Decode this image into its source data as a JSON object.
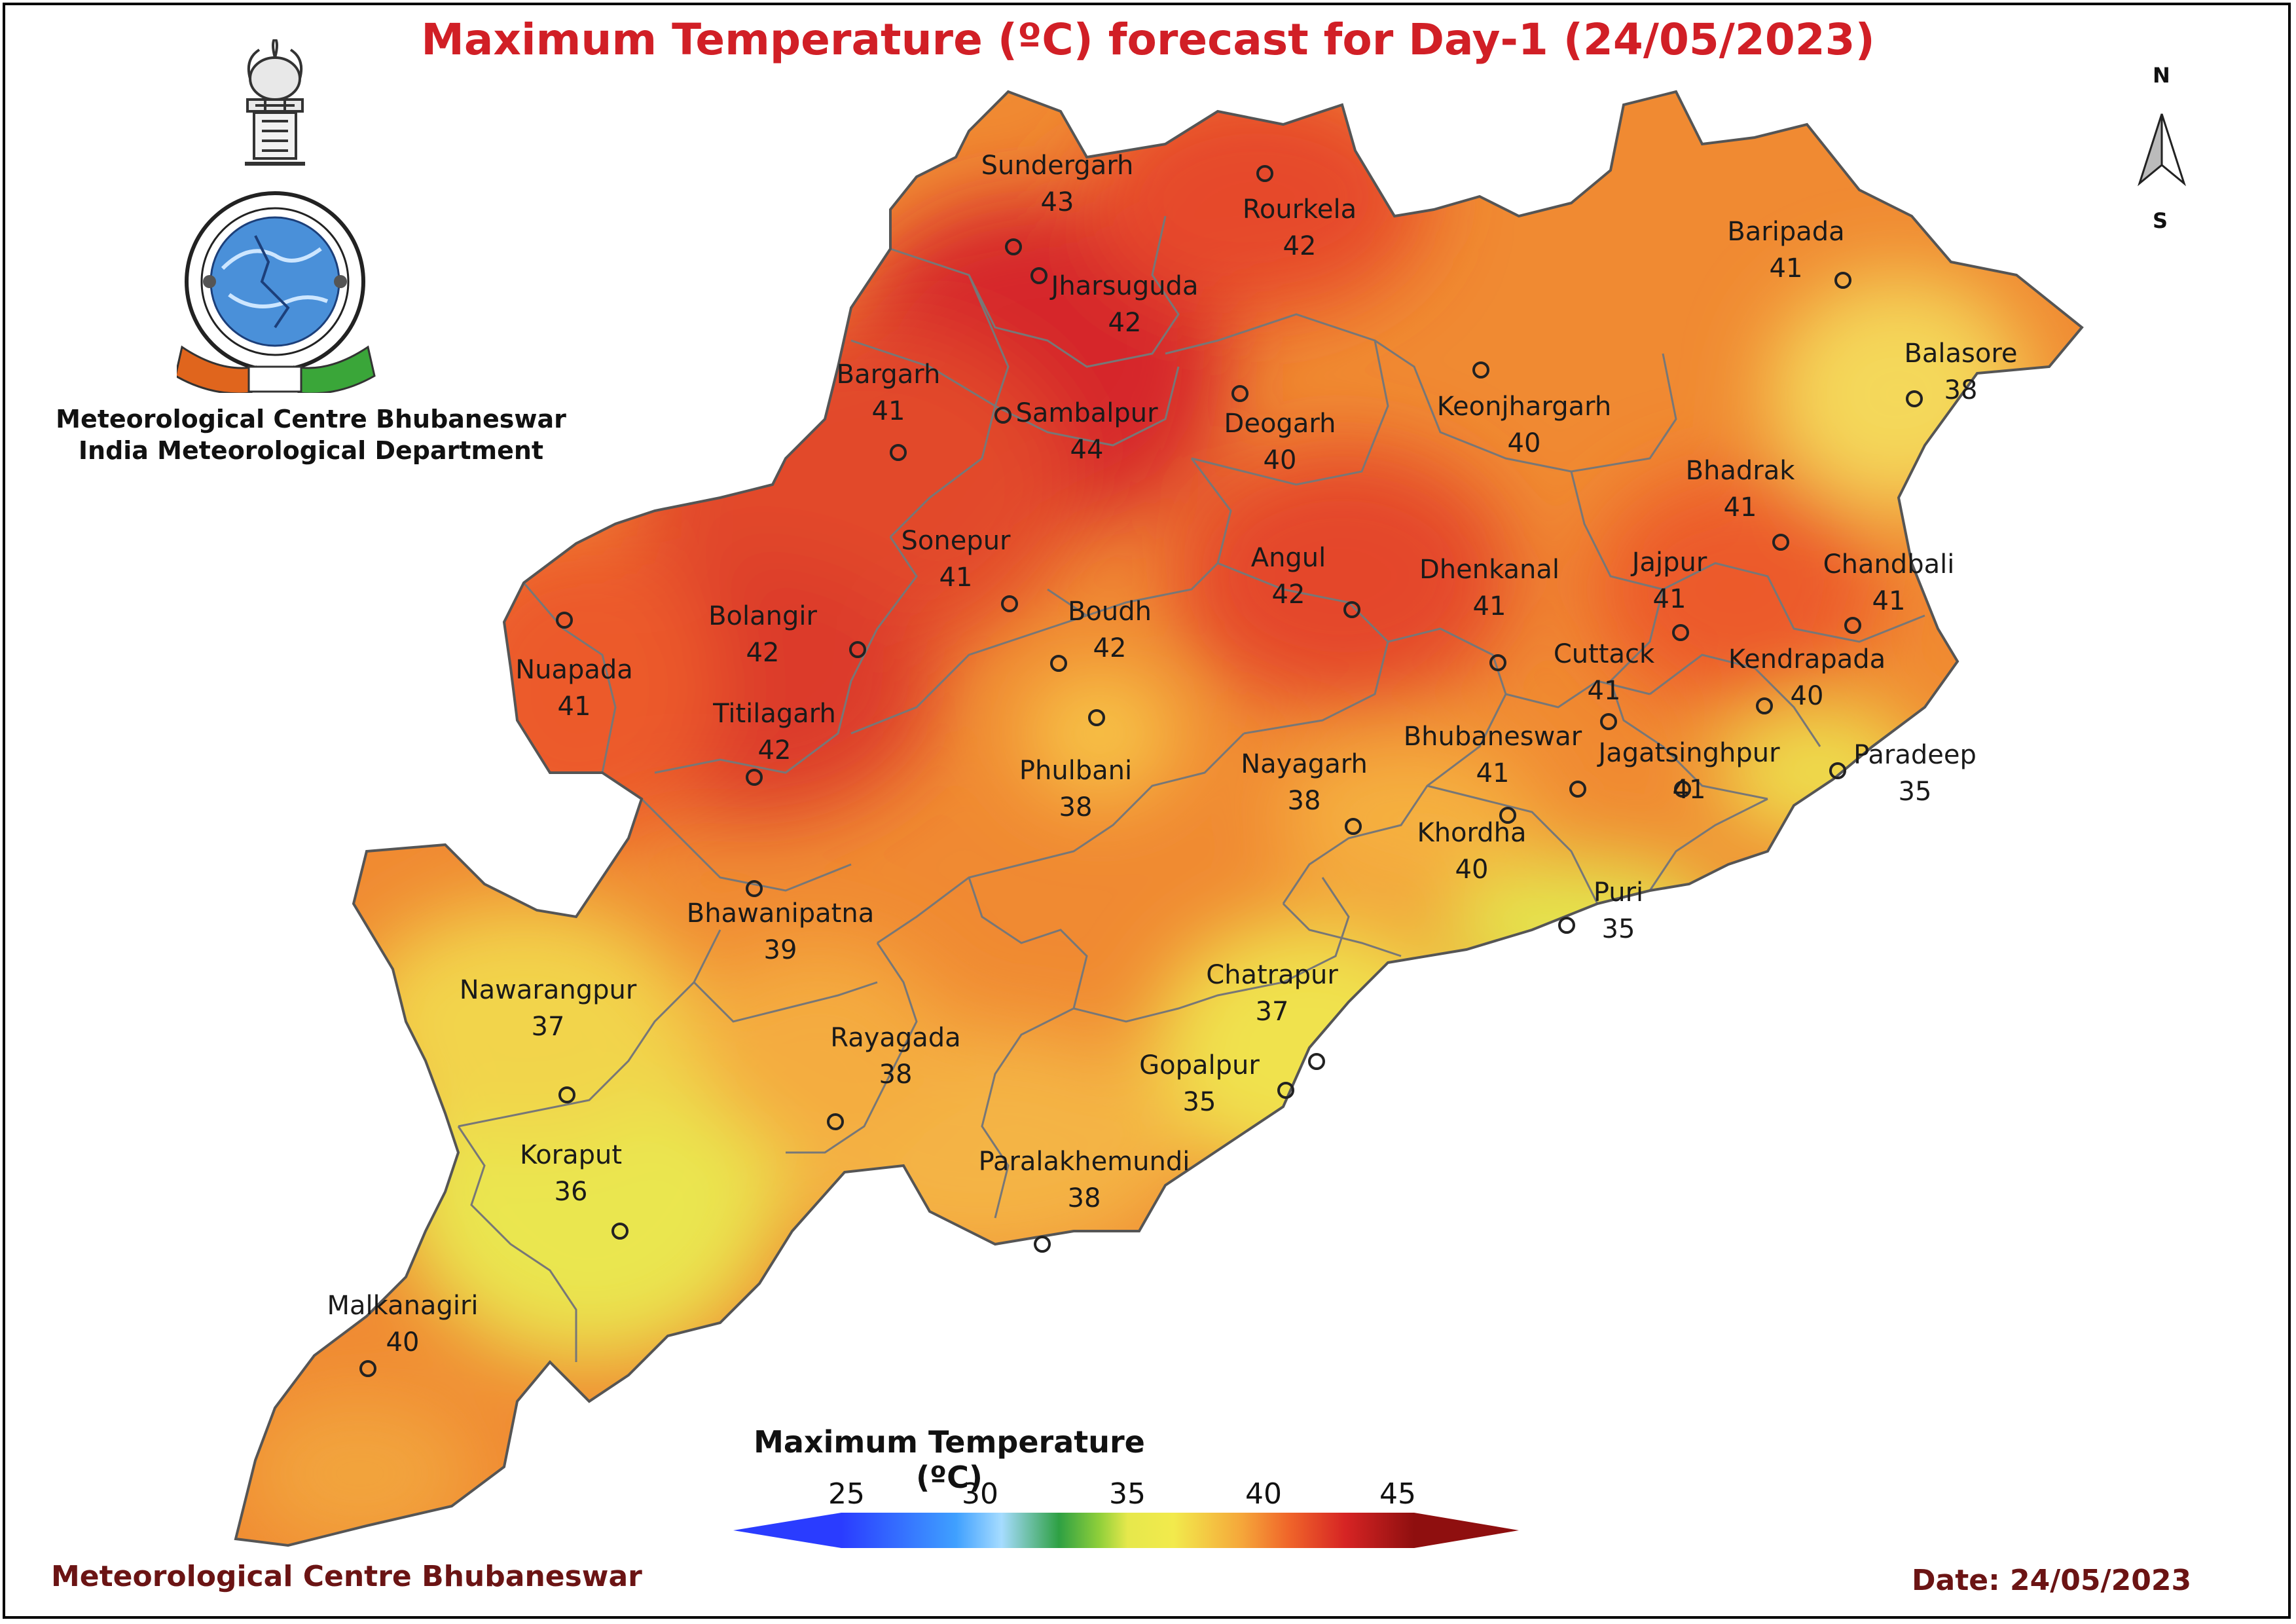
{
  "title": {
    "text": "Maximum Temperature (ºC) forecast for Day-1 (24/05/2023)",
    "color": "#d11f26"
  },
  "organization": {
    "line1": "Meteorological Centre Bhubaneswar",
    "line2": "India Meteorological Department",
    "logo_icon": "imd-emblem-logo"
  },
  "compass": {
    "north": "N",
    "south": "S",
    "icon": "north-arrow-icon"
  },
  "legend": {
    "title": "Maximum Temperature (ºC)",
    "ticks": [
      "25",
      "30",
      "35",
      "40",
      "45"
    ],
    "colors": [
      "#2a3cff",
      "#3fa0ff",
      "#a6dcff",
      "#2ea043",
      "#8fcf3a",
      "#f2ea4c",
      "#f5a63a",
      "#f0662a",
      "#d62424",
      "#8f0f0f"
    ]
  },
  "footer": {
    "left": "Meteorological Centre Bhubaneswar",
    "right": "Date: 24/05/2023"
  },
  "map_data": {
    "region": "Odisha",
    "stations": [
      {
        "name": "Sundergarh",
        "value": "43"
      },
      {
        "name": "Rourkela",
        "value": "42"
      },
      {
        "name": "Jharsuguda",
        "value": "42"
      },
      {
        "name": "Baripada",
        "value": "41"
      },
      {
        "name": "Balasore",
        "value": "38"
      },
      {
        "name": "Bargarh",
        "value": "41"
      },
      {
        "name": "Sambalpur",
        "value": "44"
      },
      {
        "name": "Deogarh",
        "value": "40"
      },
      {
        "name": "Keonjhargarh",
        "value": "40"
      },
      {
        "name": "Bhadrak",
        "value": "41"
      },
      {
        "name": "Sonepur",
        "value": "41"
      },
      {
        "name": "Angul",
        "value": "42"
      },
      {
        "name": "Dhenkanal",
        "value": "41"
      },
      {
        "name": "Jajpur",
        "value": "41"
      },
      {
        "name": "Chandbali",
        "value": "41"
      },
      {
        "name": "Bolangir",
        "value": "42"
      },
      {
        "name": "Boudh",
        "value": "42"
      },
      {
        "name": "Cuttack",
        "value": "41"
      },
      {
        "name": "Kendrapada",
        "value": "40"
      },
      {
        "name": "Nuapada",
        "value": "41"
      },
      {
        "name": "Titilagarh",
        "value": "42"
      },
      {
        "name": "Phulbani",
        "value": "38"
      },
      {
        "name": "Nayagarh",
        "value": "38"
      },
      {
        "name": "Bhubaneswar",
        "value": "41"
      },
      {
        "name": "Jagatsinghpur",
        "value": "41"
      },
      {
        "name": "Paradeep",
        "value": "35"
      },
      {
        "name": "Khordha",
        "value": "40"
      },
      {
        "name": "Puri",
        "value": "35"
      },
      {
        "name": "Bhawanipatna",
        "value": "39"
      },
      {
        "name": "Chatrapur",
        "value": "37"
      },
      {
        "name": "Nawarangpur",
        "value": "37"
      },
      {
        "name": "Rayagada",
        "value": "38"
      },
      {
        "name": "Gopalpur",
        "value": "35"
      },
      {
        "name": "Koraput",
        "value": "36"
      },
      {
        "name": "Paralakhemundi",
        "value": "38"
      },
      {
        "name": "Malkanagiri",
        "value": "40"
      }
    ]
  }
}
